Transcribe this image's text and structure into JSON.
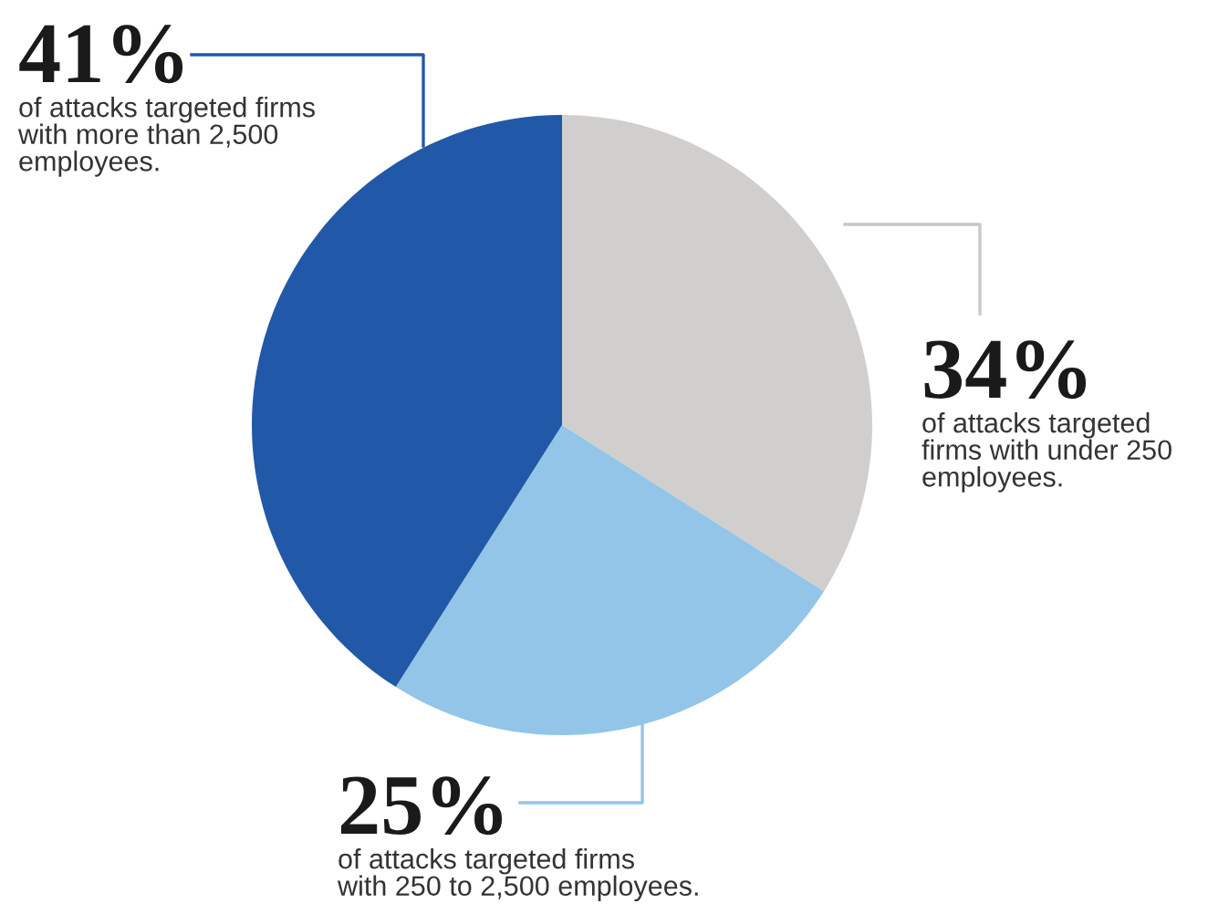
{
  "chart_data": {
    "type": "pie",
    "categories": [
      "of attacks targeted\nfirms with under 250\nemployees.",
      "of attacks targeted firms\nwith 250 to 2,500 employees.",
      "of attacks targeted firms\nwith more than 2,500\nemployees."
    ],
    "values": [
      34,
      25,
      41
    ],
    "colors": [
      "#d0cfcd",
      "#92c5e8",
      "#2159a8"
    ],
    "value_labels": [
      "34%",
      "25%",
      "41%"
    ]
  }
}
